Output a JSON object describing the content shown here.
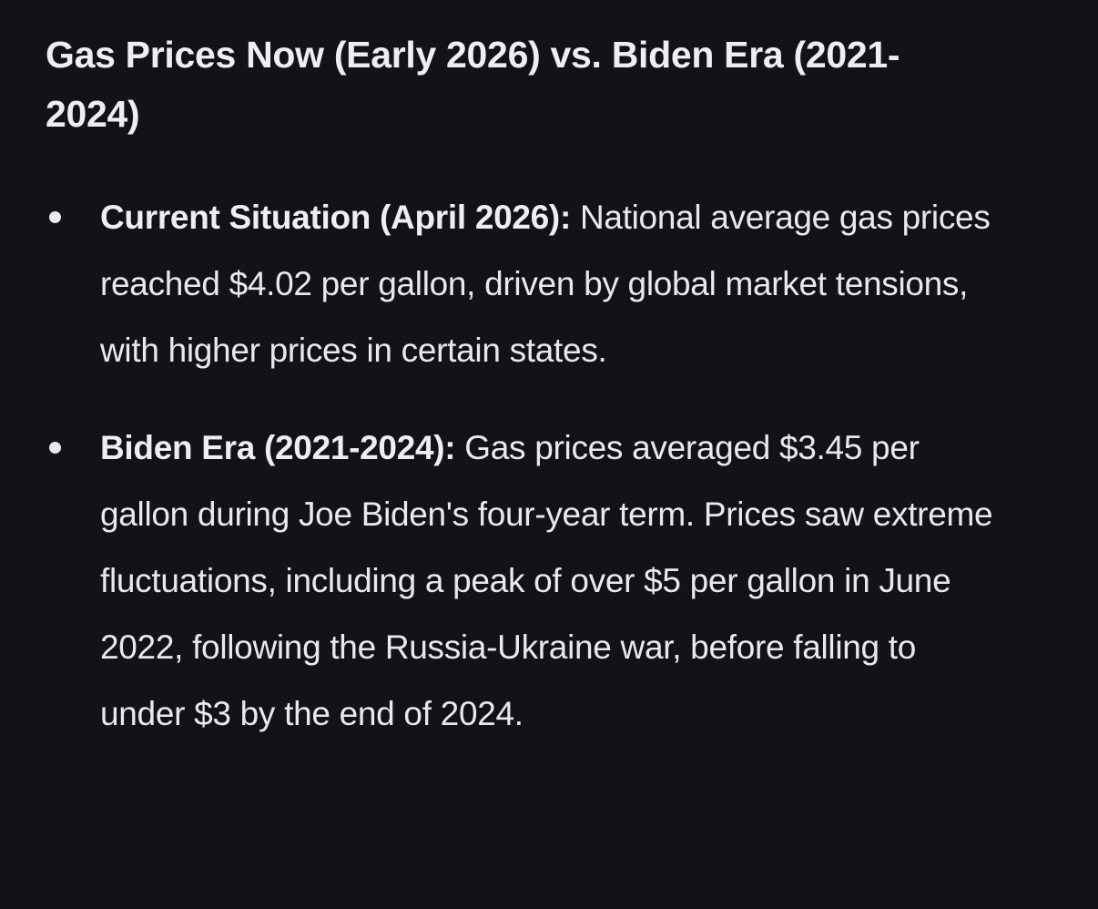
{
  "page": {
    "background_color": "#121318",
    "text_color": "#e9e9ed",
    "theme": "dark"
  },
  "heading": {
    "text": "Gas Prices Now (Early 2026) vs. Biden Era (2021-2024)"
  },
  "bullets": [
    {
      "lead": "Current Situation (April 2026):",
      "body": " National average gas prices reached $4.02 per gallon, driven by global market tensions, with higher prices in certain states."
    },
    {
      "lead": "Biden Era (2021-2024):",
      "body": " Gas prices averaged $3.45 per gallon during Joe Biden's four-year term. Prices saw extreme fluctuations, including a peak of over $5 per gallon in June 2022, following the Russia-Ukraine war, before falling to under $3 by the end of 2024."
    }
  ]
}
